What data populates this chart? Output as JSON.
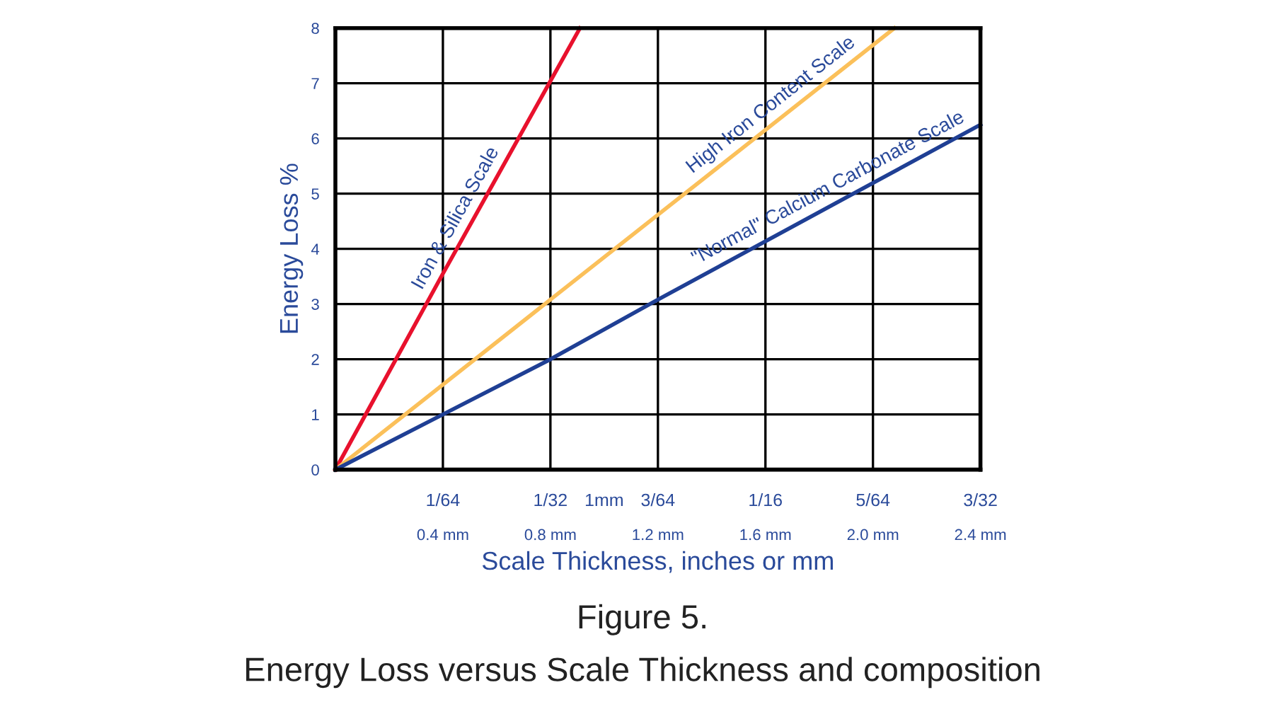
{
  "chart_data": {
    "type": "line",
    "xlabel": "Scale Thickness, inches or mm",
    "ylabel": "Energy Loss %",
    "xlim": [
      0,
      2.4
    ],
    "ylim": [
      0,
      8
    ],
    "xticks": [
      {
        "value": 0.4,
        "label": "0.4 mm"
      },
      {
        "value": 0.8,
        "label": "0.8 mm"
      },
      {
        "value": 1.2,
        "label": "1.2 mm"
      },
      {
        "value": 1.6,
        "label": "1.6 mm"
      },
      {
        "value": 2.0,
        "label": "2.0 mm"
      },
      {
        "value": 2.4,
        "label": "2.4 mm"
      }
    ],
    "yticks": [
      0,
      1,
      2,
      3,
      4,
      5,
      6,
      7,
      8
    ],
    "grid": true,
    "legend": false,
    "marker": "none",
    "line_style": "solid",
    "series": [
      {
        "name": "Iron & Silica Scale",
        "color": "#e8112d",
        "x": [
          0,
          0.4,
          0.91
        ],
        "values": [
          0,
          3.55,
          8
        ]
      },
      {
        "name": "High Iron Content Scale",
        "color": "#fbc05a",
        "x": [
          0,
          0.8,
          2.08
        ],
        "values": [
          0,
          3.08,
          8
        ]
      },
      {
        "name": "\"Normal\" Calcium Carbonate Scale",
        "color": "#1f3f94",
        "x": [
          0,
          0.4,
          0.8,
          1.2,
          2.4
        ],
        "values": [
          0,
          1,
          2,
          3.08,
          6.25
        ]
      }
    ],
    "annotations": [
      "1/64",
      "1/32",
      "1mm",
      "3/64",
      "1/16",
      "5/64",
      "3/32",
      "Figure 5.",
      "Energy Loss versus Scale Thickness and composition"
    ]
  }
}
